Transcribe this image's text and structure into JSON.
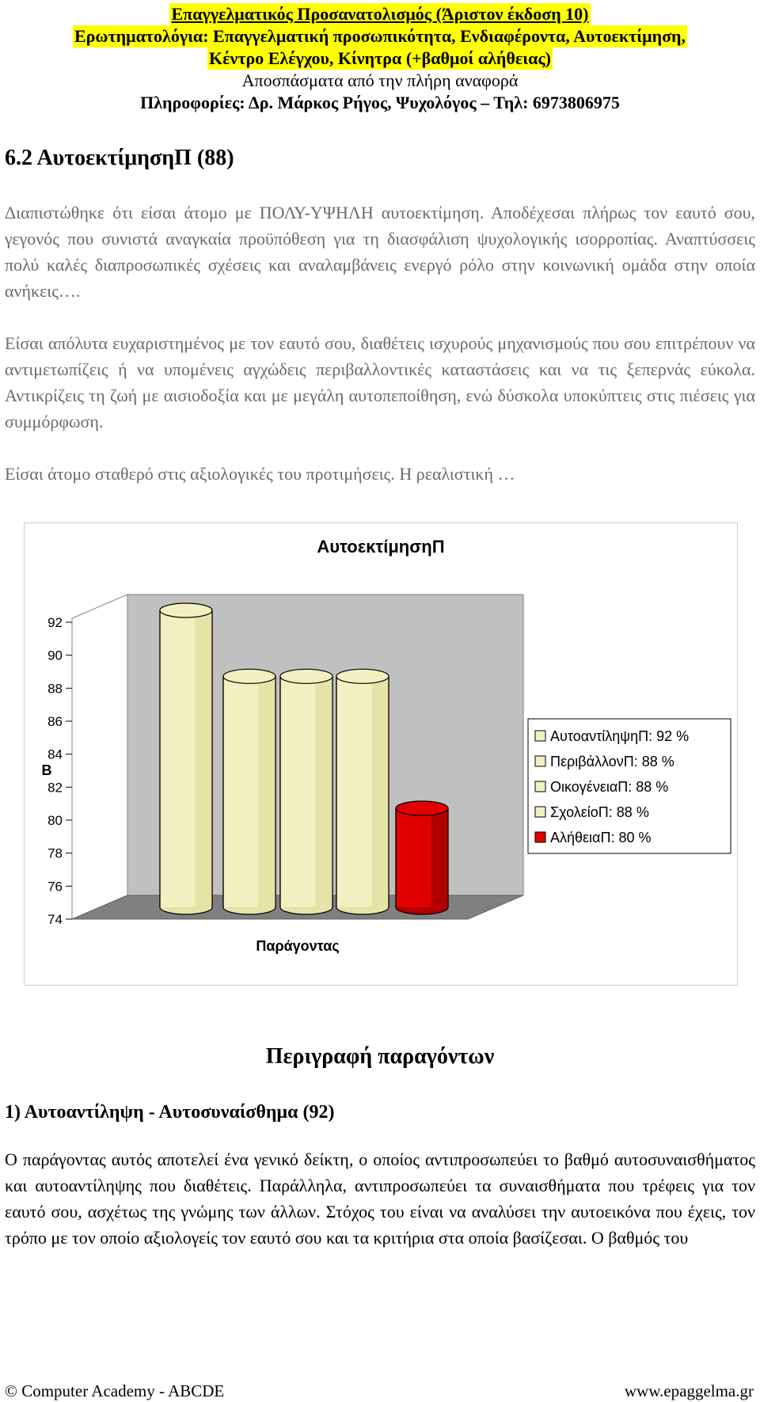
{
  "header": {
    "line1": "Επαγγελματικός Προσανατολισμός (Άριστον έκδοση 10)",
    "line2": "Ερωτηματολόγια: Επαγγελματική προσωπικότητα, Ενδιαφέροντα, Αυτοεκτίμηση,",
    "line3": "Κέντρο Ελέγχου, Κίνητρα (+βαθμοί αλήθειας)",
    "line4": "Αποσπάσματα από την πλήρη αναφορά",
    "line5": "Πληροφορίες: Δρ. Μάρκος Ρήγος, Ψυχολόγος – Τηλ: 6973806975"
  },
  "section_title": "6.2 ΑυτοεκτίμησηΠ (88)",
  "paragraphs": {
    "p1": "Διαπιστώθηκε ότι είσαι άτομο με ΠΟΛΥ-ΥΨΗΛΗ αυτοεκτίμηση. Αποδέχεσαι πλήρως τον εαυτό σου, γεγονός που συνιστά αναγκαία προϋπόθεση για τη διασφάλιση ψυχολογικής ισορροπίας. Αναπτύσσεις πολύ καλές διαπροσωπικές σχέσεις και αναλαμβάνεις ενεργό ρόλο στην κοινωνική ομάδα στην οποία ανήκεις….",
    "p2": "Είσαι απόλυτα ευχαριστημένος με τον εαυτό σου, διαθέτεις ισχυρούς μηχανισμούς που σου επιτρέπουν να αντιμετωπίζεις ή να υπομένεις αγχώδεις περιβαλλοντικές καταστάσεις και να τις ξεπερνάς εύκολα. Αντικρίζεις τη ζωή με αισιοδοξία και με μεγάλη αυτοπεποίθηση, ενώ δύσκολα υποκύπτεις στις πιέσεις για συμμόρφωση.",
    "p3": "Είσαι άτομο σταθερό στις αξιολογικές του προτιμήσεις. Η ρεαλιστική …"
  },
  "chart_data": {
    "type": "bar",
    "title": "ΑυτοεκτίμησηΠ",
    "ylabel": "Β",
    "xlabel": "Παράγοντας",
    "ylim": [
      74,
      92
    ],
    "yticks": [
      74,
      76,
      78,
      80,
      82,
      84,
      86,
      88,
      90,
      92
    ],
    "categories": [
      "ΑυτοαντίληψηΠ",
      "ΠεριβάλλονΠ",
      "ΟικογένειαΠ",
      "ΣχολείοΠ",
      "ΑλήθειαΠ"
    ],
    "values": [
      92,
      88,
      88,
      88,
      80
    ],
    "legend": [
      "ΑυτοαντίληψηΠ: 92 %",
      "ΠεριβάλλονΠ: 88 %",
      "ΟικογένειαΠ: 88 %",
      "ΣχολείοΠ: 88 %",
      "ΑλήθειαΠ: 80 %"
    ],
    "colors": [
      "#f2f0c0",
      "#f2f0c0",
      "#f2f0c0",
      "#f2f0c0",
      "#e00000"
    ],
    "legend_position": "right",
    "grid": false
  },
  "description": {
    "title": "Περιγραφή παραγόντων",
    "subtitle": "1) Αυτοαντίληψη - Αυτοσυναίσθημα (92)",
    "p1": "Ο παράγοντας αυτός αποτελεί ένα γενικό δείκτη, ο οποίος αντιπροσωπεύει το βαθμό αυτοσυναισθήματος και αυτοαντίληψης που διαθέτεις. Παράλληλα, αντιπροσωπεύει τα συναισθήματα που τρέφεις για τον εαυτό σου, ασχέτως της γνώμης των άλλων. Στόχος του είναι να αναλύσει την αυτοεικόνα που έχεις, τον τρόπο με τον οποίο αξιολογείς τον εαυτό σου και τα κριτήρια στα οποία βασίζεσαι. Ο βαθμός του"
  },
  "footer": {
    "left": "© Computer Academy - ABCDE",
    "right": "www.epaggelma.gr"
  }
}
